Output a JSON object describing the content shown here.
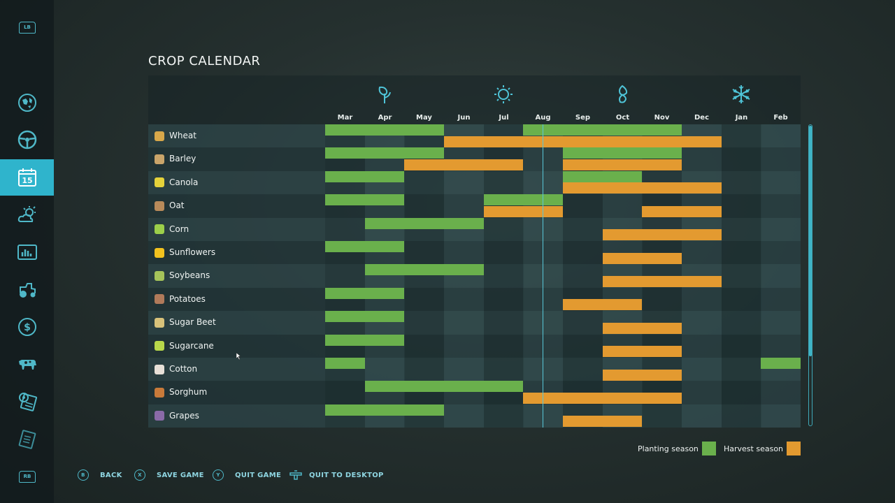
{
  "title": "CROP CALENDAR",
  "sidebar": {
    "top_badge": "LB",
    "bottom_badge": "RB",
    "items": [
      {
        "name": "map-icon"
      },
      {
        "name": "steering-wheel-icon"
      },
      {
        "name": "calendar-icon",
        "label": "15",
        "active": true
      },
      {
        "name": "weather-icon"
      },
      {
        "name": "statistics-icon"
      },
      {
        "name": "tractor-icon"
      },
      {
        "name": "finances-icon"
      },
      {
        "name": "animals-icon"
      },
      {
        "name": "settings-icon"
      },
      {
        "name": "help-icon"
      }
    ]
  },
  "seasons": [
    "spring-icon",
    "summer-icon",
    "autumn-icon",
    "winter-icon"
  ],
  "months": [
    "Mar",
    "Apr",
    "May",
    "Jun",
    "Jul",
    "Aug",
    "Sep",
    "Oct",
    "Nov",
    "Dec",
    "Jan",
    "Feb"
  ],
  "crops": [
    {
      "name": "Wheat",
      "icon": "wheat-icon",
      "plant": [
        [
          0,
          3
        ],
        [
          5,
          9
        ]
      ],
      "harvest": [
        [
          3,
          10
        ]
      ]
    },
    {
      "name": "Barley",
      "icon": "barley-icon",
      "plant": [
        [
          0,
          3
        ],
        [
          6,
          9
        ]
      ],
      "harvest": [
        [
          2,
          5
        ],
        [
          6,
          9
        ]
      ]
    },
    {
      "name": "Canola",
      "icon": "canola-icon",
      "plant": [
        [
          0,
          2
        ],
        [
          6,
          8
        ]
      ],
      "harvest": [
        [
          6,
          10
        ]
      ]
    },
    {
      "name": "Oat",
      "icon": "oat-icon",
      "plant": [
        [
          0,
          2
        ],
        [
          4,
          6
        ]
      ],
      "harvest": [
        [
          4,
          6
        ],
        [
          8,
          10
        ]
      ]
    },
    {
      "name": "Corn",
      "icon": "corn-icon",
      "plant": [
        [
          1,
          4
        ]
      ],
      "harvest": [
        [
          7,
          10
        ]
      ]
    },
    {
      "name": "Sunflowers",
      "icon": "sunflower-icon",
      "plant": [
        [
          0,
          2
        ]
      ],
      "harvest": [
        [
          7,
          9
        ]
      ]
    },
    {
      "name": "Soybeans",
      "icon": "soybeans-icon",
      "plant": [
        [
          1,
          4
        ]
      ],
      "harvest": [
        [
          7,
          10
        ]
      ]
    },
    {
      "name": "Potatoes",
      "icon": "potatoes-icon",
      "plant": [
        [
          0,
          2
        ]
      ],
      "harvest": [
        [
          6,
          8
        ]
      ]
    },
    {
      "name": "Sugar Beet",
      "icon": "sugar-beet-icon",
      "plant": [
        [
          0,
          2
        ]
      ],
      "harvest": [
        [
          7,
          9
        ]
      ]
    },
    {
      "name": "Sugarcane",
      "icon": "sugarcane-icon",
      "plant": [
        [
          0,
          2
        ]
      ],
      "harvest": [
        [
          7,
          9
        ]
      ]
    },
    {
      "name": "Cotton",
      "icon": "cotton-icon",
      "plant": [
        [
          0,
          1
        ],
        [
          11,
          12
        ]
      ],
      "harvest": [
        [
          7,
          9
        ]
      ]
    },
    {
      "name": "Sorghum",
      "icon": "sorghum-icon",
      "plant": [
        [
          1,
          5
        ]
      ],
      "harvest": [
        [
          5,
          9
        ]
      ]
    },
    {
      "name": "Grapes",
      "icon": "grapes-icon",
      "plant": [
        [
          0,
          3
        ]
      ],
      "harvest": [
        [
          6,
          8
        ]
      ]
    }
  ],
  "today_month_fraction": 5.0,
  "legend": {
    "planting": "Planting season",
    "harvest": "Harvest season",
    "planting_color": "#6ab04c",
    "harvest_color": "#e39a30"
  },
  "footer": {
    "back_glyph": "B",
    "back": "BACK",
    "save_glyph": "X",
    "save": "SAVE GAME",
    "quit_glyph": "Y",
    "quit": "QUIT GAME",
    "desktop": "QUIT TO DESKTOP"
  }
}
